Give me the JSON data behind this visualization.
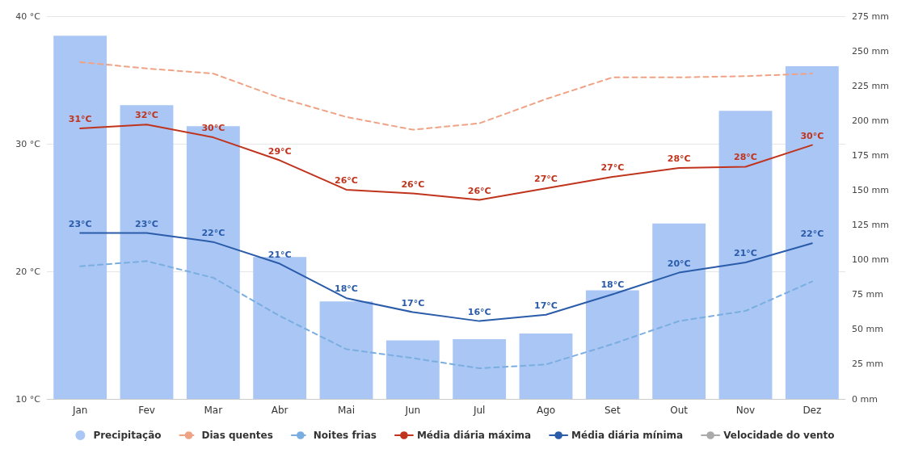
{
  "chart_data": {
    "type": "bar",
    "categories": [
      "Jan",
      "Fev",
      "Mar",
      "Abr",
      "Mai",
      "Jun",
      "Jul",
      "Ago",
      "Set",
      "Out",
      "Nov",
      "Dez"
    ],
    "series": [
      {
        "name": "Precipitação",
        "axis": "y2",
        "color": "#a9c6f5",
        "values": [
          261,
          211,
          196,
          102,
          70,
          42,
          43,
          47,
          78,
          126,
          207,
          239
        ]
      },
      {
        "name": "Dias quentes",
        "type": "line",
        "line_style": "dashed",
        "color": "#f0a285",
        "values": [
          36.4,
          35.9,
          35.5,
          33.6,
          32.1,
          31.1,
          31.6,
          33.5,
          35.2,
          35.2,
          35.3,
          35.5
        ]
      },
      {
        "name": "Noites frias",
        "type": "line",
        "line_style": "dashed",
        "color": "#7aaee0",
        "values": [
          20.4,
          20.8,
          19.5,
          16.5,
          13.9,
          13.2,
          12.4,
          12.7,
          14.3,
          16.1,
          16.9,
          19.2
        ]
      },
      {
        "name": "Média diária máxima",
        "type": "line",
        "line_style": "solid",
        "color": "#c0341d",
        "values": [
          31.2,
          31.5,
          30.5,
          28.7,
          26.4,
          26.1,
          25.6,
          26.5,
          27.4,
          28.1,
          28.2,
          29.9
        ],
        "value_labels": [
          "31°C",
          "32°C",
          "30°C",
          "29°C",
          "26°C",
          "26°C",
          "26°C",
          "27°C",
          "27°C",
          "28°C",
          "28°C",
          "30°C"
        ]
      },
      {
        "name": "Média diária mínima",
        "type": "line",
        "line_style": "solid",
        "color": "#2a5caa",
        "values": [
          23.0,
          23.0,
          22.3,
          20.6,
          17.9,
          16.8,
          16.1,
          16.6,
          18.2,
          19.9,
          20.7,
          22.2
        ],
        "value_labels": [
          "23°C",
          "23°C",
          "22°C",
          "21°C",
          "18°C",
          "17°C",
          "16°C",
          "17°C",
          "18°C",
          "20°C",
          "21°C",
          "22°C"
        ]
      },
      {
        "name": "Velocidade do vento",
        "type": "line",
        "line_style": "solid",
        "color": "#aaaaaa",
        "values": [
          null,
          null,
          null,
          null,
          null,
          null,
          null,
          null,
          null,
          null,
          null,
          null
        ]
      }
    ],
    "ylim": [
      10,
      40
    ],
    "yticks": [
      {
        "value": 10,
        "label": "10 °C"
      },
      {
        "value": 20,
        "label": "20 °C"
      },
      {
        "value": 30,
        "label": "30 °C"
      },
      {
        "value": 40,
        "label": "40 °C"
      }
    ],
    "y2lim": [
      0,
      275
    ],
    "y2ticks": [
      {
        "value": 0,
        "label": "0 mm"
      },
      {
        "value": 25,
        "label": "25 mm"
      },
      {
        "value": 50,
        "label": "50 mm"
      },
      {
        "value": 75,
        "label": "75 mm"
      },
      {
        "value": 100,
        "label": "100 mm"
      },
      {
        "value": 125,
        "label": "125 mm"
      },
      {
        "value": 150,
        "label": "150 mm"
      },
      {
        "value": 175,
        "label": "175 mm"
      },
      {
        "value": 200,
        "label": "200 mm"
      },
      {
        "value": 225,
        "label": "225 mm"
      },
      {
        "value": 250,
        "label": "250 mm"
      },
      {
        "value": 275,
        "label": "275 mm"
      }
    ],
    "grid": "y",
    "legend": "bottom",
    "marker": "none"
  }
}
